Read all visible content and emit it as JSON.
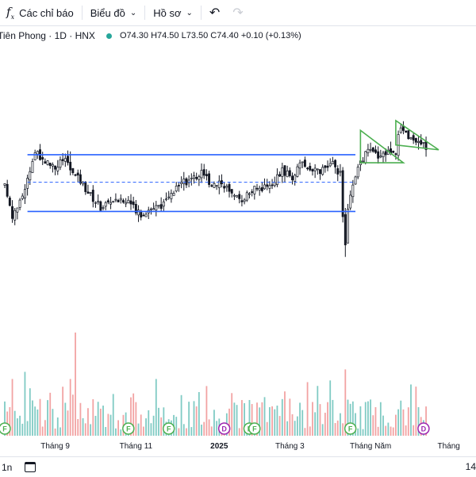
{
  "toolbar": {
    "indicators_icon": "fx-icon",
    "indicators_label": "Các chỉ báo",
    "chart_label": "Biểu đồ",
    "profile_label": "Hồ sơ",
    "undo_icon": "undo-icon",
    "redo_icon": "redo-icon"
  },
  "legend": {
    "symbol": "Tiên Phong · 1D · HNX",
    "ohlc": "O74.30 H74.50 L73.50 C74.40 +0.10 (+0.13%)",
    "status_color": "#26a69a"
  },
  "colors": {
    "up": "#26a69a",
    "down": "#ef5350",
    "vol_up": "#80cbc4",
    "vol_down": "#f2a3a3",
    "candle": "#131722",
    "channel": "#2962ff",
    "triangle": "#4caf50",
    "event_f": "#4caf50",
    "event_d": "#9c27b0"
  },
  "chart_data": {
    "type": "candlestick",
    "price_range": [
      61.5,
      79.5
    ],
    "horizontal_lines": [
      {
        "price": 73.0,
        "style": "solid",
        "start_day": 9,
        "end_day": 139
      },
      {
        "price": 71.3,
        "style": "dashed",
        "start_day": 9,
        "end_day": 139
      },
      {
        "price": 69.5,
        "style": "solid",
        "start_day": 9,
        "end_day": 139
      }
    ],
    "triangles": [
      {
        "points": [
          [
            141,
            74.5
          ],
          [
            158,
            72.5
          ],
          [
            141,
            72.5
          ]
        ]
      },
      {
        "points": [
          [
            155,
            75.1
          ],
          [
            172,
            73.3
          ],
          [
            155,
            73.6
          ]
        ]
      }
    ],
    "x_axis_labels": [
      {
        "day": 20,
        "label": "Tháng 9"
      },
      {
        "day": 52,
        "label": "Tháng 11"
      },
      {
        "day": 85,
        "label": "2025"
      },
      {
        "day": 113,
        "label": "Tháng 3"
      },
      {
        "day": 145,
        "label": "Tháng Năm"
      },
      {
        "day": 176,
        "label": "Tháng"
      }
    ],
    "events": [
      {
        "day": 0,
        "letter": "F"
      },
      {
        "day": 49,
        "letter": "F"
      },
      {
        "day": 65,
        "letter": "F"
      },
      {
        "day": 87,
        "letter": "D"
      },
      {
        "day": 97,
        "letter": "F"
      },
      {
        "day": 99,
        "letter": "F"
      },
      {
        "day": 137,
        "letter": "F"
      },
      {
        "day": 166,
        "letter": "D"
      }
    ],
    "price_path": [
      [
        0,
        71.0
      ],
      [
        3,
        69.3
      ],
      [
        6,
        70.0
      ],
      [
        9,
        71.5
      ],
      [
        12,
        73.1
      ],
      [
        16,
        72.6
      ],
      [
        20,
        72.2
      ],
      [
        24,
        72.8
      ],
      [
        27,
        71.8
      ],
      [
        30,
        71.4
      ],
      [
        34,
        70.5
      ],
      [
        38,
        69.8
      ],
      [
        44,
        70.3
      ],
      [
        50,
        69.9
      ],
      [
        54,
        69.4
      ],
      [
        58,
        69.7
      ],
      [
        62,
        69.8
      ],
      [
        66,
        70.5
      ],
      [
        70,
        71.2
      ],
      [
        74,
        71.5
      ],
      [
        78,
        71.9
      ],
      [
        82,
        71.2
      ],
      [
        86,
        71.4
      ],
      [
        90,
        70.4
      ],
      [
        94,
        70.3
      ],
      [
        98,
        70.8
      ],
      [
        102,
        71.0
      ],
      [
        106,
        71.3
      ],
      [
        110,
        72.0
      ],
      [
        114,
        71.6
      ],
      [
        118,
        72.5
      ],
      [
        122,
        72.0
      ],
      [
        126,
        72.1
      ],
      [
        130,
        72.4
      ],
      [
        133,
        71.8
      ],
      [
        134,
        69.0
      ],
      [
        135,
        67.5
      ],
      [
        136,
        69.8
      ],
      [
        138,
        71.0
      ],
      [
        141,
        72.6
      ],
      [
        144,
        73.2
      ],
      [
        148,
        73.0
      ],
      [
        152,
        73.2
      ],
      [
        155,
        73.3
      ],
      [
        157,
        74.8
      ],
      [
        160,
        74.2
      ],
      [
        163,
        73.8
      ],
      [
        167,
        73.5
      ]
    ],
    "last_day": 167,
    "spikes": [
      {
        "day": 3,
        "low": 68.8
      },
      {
        "day": 26,
        "high": 73.2
      },
      {
        "day": 60,
        "low": 69.2
      },
      {
        "day": 135,
        "low": 66.7
      }
    ],
    "volume_spikes": [
      {
        "day": 28,
        "value": 100
      }
    ]
  },
  "bottom": {
    "range_label": "1n",
    "calendar_icon": "calendar-icon",
    "right_label": "14"
  }
}
